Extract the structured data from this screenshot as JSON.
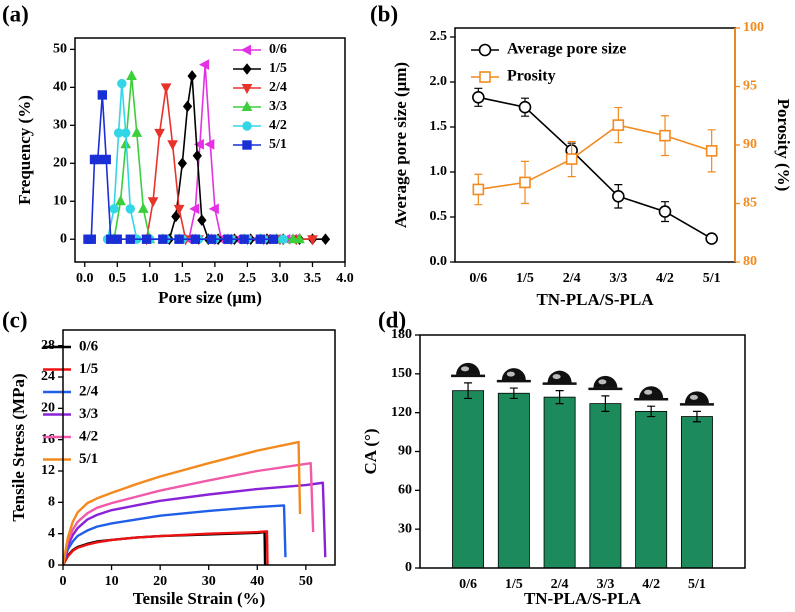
{
  "chart_data": [
    {
      "type": "line",
      "label": "(a)",
      "xlabel": "Pore size (μm)",
      "ylabel": "Frequency (%)",
      "xlim": [
        -0.15,
        4.0
      ],
      "xticks": [
        {
          "value": 0,
          "label": "0.0"
        },
        0.5,
        {
          "value": 1,
          "label": "1.0"
        },
        1.5,
        {
          "value": 2,
          "label": "2.0"
        },
        2.5,
        {
          "value": 3,
          "label": "3.0"
        },
        3.5,
        {
          "value": 4,
          "label": "4.0"
        }
      ],
      "ylim": [
        -6,
        53
      ],
      "yticks": [
        0,
        10,
        20,
        30,
        40,
        50
      ],
      "legend": "upper right",
      "series": [
        {
          "name": "0/6",
          "color": "#e331e3",
          "marker": "tri-left",
          "x": [
            1.5,
            1.6,
            1.7,
            1.77,
            1.85,
            1.93,
            2.0,
            2.1,
            2.2,
            2.35,
            2.5,
            2.65,
            2.8,
            2.95,
            3.1,
            3.2
          ],
          "values": [
            0,
            0,
            8,
            25,
            46,
            25,
            8,
            0,
            0,
            0,
            0,
            0,
            0,
            0,
            0,
            0
          ]
        },
        {
          "name": "1/5",
          "color": "#000000",
          "marker": "diamond",
          "x": [
            1.3,
            1.4,
            1.5,
            1.58,
            1.65,
            1.73,
            1.8,
            1.9,
            2.05,
            2.3,
            2.55,
            2.8,
            3.05,
            3.3,
            3.5,
            3.7
          ],
          "values": [
            0,
            6,
            20,
            35,
            43,
            22,
            5,
            0,
            0,
            0,
            0,
            0,
            0,
            0,
            0,
            0
          ]
        },
        {
          "name": "2/4",
          "color": "#e8332a",
          "marker": "tri-down",
          "x": [
            0.95,
            1.05,
            1.15,
            1.25,
            1.35,
            1.45,
            1.55,
            1.75,
            2.0,
            2.25,
            2.5,
            2.75,
            3.0,
            3.25,
            3.5
          ],
          "values": [
            0,
            10,
            28,
            40,
            25,
            8,
            0,
            0,
            0,
            0,
            0,
            0,
            0,
            0,
            0
          ]
        },
        {
          "name": "3/3",
          "color": "#3ccf3c",
          "marker": "tri-up",
          "x": [
            0.45,
            0.55,
            0.63,
            0.72,
            0.8,
            0.9,
            1.0,
            1.2,
            1.45,
            1.7,
            1.95,
            2.2,
            2.45,
            2.7,
            2.95,
            3.2,
            3.3
          ],
          "values": [
            0,
            10,
            25,
            43,
            28,
            8,
            0,
            0,
            0,
            0,
            0,
            0,
            0,
            0,
            0,
            0,
            0
          ]
        },
        {
          "name": "4/2",
          "color": "#33d6e6",
          "marker": "circle",
          "x": [
            0.35,
            0.45,
            0.52,
            0.57,
            0.63,
            0.7,
            0.8,
            1.0,
            1.25,
            1.5,
            1.75,
            2.0,
            2.25,
            2.5,
            2.75,
            3.05
          ],
          "values": [
            0,
            8,
            28,
            41,
            28,
            8,
            0,
            0,
            0,
            0,
            0,
            0,
            0,
            0,
            0,
            0
          ]
        },
        {
          "name": "5/1",
          "color": "#1a2fd6",
          "marker": "square",
          "x": [
            0.05,
            0.1,
            0.15,
            0.2,
            0.27,
            0.33,
            0.4,
            0.5,
            0.7,
            0.95,
            1.2,
            1.45,
            1.7,
            1.95,
            2.2,
            2.45,
            2.7,
            2.9
          ],
          "values": [
            0,
            0,
            21,
            21,
            38,
            21,
            0,
            0,
            0,
            0,
            0,
            0,
            0,
            0,
            0,
            0,
            0,
            0
          ]
        }
      ]
    },
    {
      "type": "line",
      "label": "(b)",
      "xlabel": "TN-PLA/S-PLA",
      "ylabel": "Average pore size (μm)",
      "y2label": "Porosity (%)",
      "categories": [
        "0/6",
        "1/5",
        "2/4",
        "3/3",
        "4/2",
        "5/1"
      ],
      "ylim": [
        0,
        2.6
      ],
      "yticks": [
        {
          "value": 0,
          "label": "0.0"
        },
        0.5,
        {
          "value": 1,
          "label": "1.0"
        },
        1.5,
        {
          "value": 2,
          "label": "2.0"
        },
        2.5
      ],
      "y2lim": [
        80,
        100
      ],
      "y2ticks": [
        80,
        85,
        90,
        95,
        100
      ],
      "y2color": "#f28a1e",
      "legend": "upper right",
      "series": [
        {
          "name": "Average pore size",
          "color": "#000000",
          "marker": "circle-open",
          "values": [
            1.83,
            1.72,
            1.24,
            0.73,
            0.56,
            0.26
          ],
          "errors": [
            0.1,
            0.1,
            0.08,
            0.13,
            0.11,
            0.04
          ]
        },
        {
          "name": "Prosity",
          "color": "#f28a1e",
          "marker": "square-open",
          "axis": "y2",
          "values": [
            86.2,
            86.8,
            88.8,
            91.7,
            90.8,
            89.5
          ],
          "errors": [
            1.3,
            1.8,
            1.5,
            1.5,
            1.7,
            1.8
          ]
        }
      ]
    },
    {
      "type": "line",
      "label": "(c)",
      "xlabel": "Tensile Strain (%)",
      "ylabel": "Tensile Stress (MPa)",
      "xlim": [
        0,
        56
      ],
      "xticks": [
        0,
        10,
        20,
        30,
        40,
        50
      ],
      "ylim": [
        0,
        30
      ],
      "yticks": [
        0,
        4,
        8,
        12,
        16,
        20,
        24,
        28
      ],
      "legend": "upper left",
      "series": [
        {
          "name": "0/6",
          "color": "#000000",
          "x": [
            0,
            1,
            2,
            3,
            5,
            7,
            10,
            15,
            20,
            30,
            40,
            41.5,
            41.6
          ],
          "values": [
            0,
            1.2,
            1.9,
            2.3,
            2.7,
            3.0,
            3.2,
            3.5,
            3.7,
            3.9,
            4.1,
            4.2,
            0
          ]
        },
        {
          "name": "1/5",
          "color": "#ee1111",
          "x": [
            0,
            1,
            2,
            3,
            5,
            7,
            10,
            15,
            20,
            30,
            40,
            42,
            42.1
          ],
          "values": [
            0,
            1.1,
            1.8,
            2.2,
            2.6,
            2.9,
            3.2,
            3.5,
            3.7,
            4.0,
            4.2,
            4.3,
            0
          ]
        },
        {
          "name": "2/4",
          "color": "#1f5fe8",
          "x": [
            0,
            1,
            2,
            3,
            5,
            7,
            10,
            15,
            20,
            30,
            40,
            45.5,
            45.8
          ],
          "values": [
            0,
            2.0,
            3.0,
            3.7,
            4.4,
            4.9,
            5.3,
            5.8,
            6.3,
            6.9,
            7.4,
            7.6,
            1.0
          ]
        },
        {
          "name": "3/3",
          "color": "#8a22d8",
          "x": [
            0,
            1,
            2,
            3,
            5,
            7,
            10,
            15,
            20,
            30,
            40,
            50,
            53.5,
            54
          ],
          "values": [
            0,
            2.5,
            3.8,
            4.7,
            5.8,
            6.4,
            7.0,
            7.6,
            8.2,
            9.0,
            9.7,
            10.2,
            10.5,
            1.0
          ]
        },
        {
          "name": "4/2",
          "color": "#f05aa8",
          "x": [
            0,
            1,
            2,
            3,
            5,
            7,
            10,
            15,
            20,
            30,
            40,
            51,
            51.5
          ],
          "values": [
            0,
            3.0,
            4.5,
            5.5,
            6.6,
            7.3,
            7.9,
            8.7,
            9.5,
            10.8,
            12.0,
            13.0,
            4.2
          ]
        },
        {
          "name": "5/1",
          "color": "#f28a1e",
          "x": [
            0,
            1,
            2,
            3,
            5,
            7,
            10,
            15,
            20,
            30,
            40,
            48.5,
            48.8
          ],
          "values": [
            0,
            3.5,
            5.5,
            6.7,
            7.9,
            8.5,
            9.2,
            10.3,
            11.3,
            13.0,
            14.6,
            15.7,
            6.5
          ]
        }
      ]
    },
    {
      "type": "bar",
      "label": "(d)",
      "xlabel": "TN-PLA/S-PLA",
      "ylabel": "CA (°)",
      "categories": [
        "0/6",
        "1/5",
        "2/4",
        "3/3",
        "4/2",
        "5/1"
      ],
      "ylim": [
        0,
        180
      ],
      "yticks": [
        0,
        30,
        60,
        90,
        120,
        150,
        180
      ],
      "color": "#1d8a5c",
      "droplet_icons": true,
      "values": [
        137,
        135,
        132,
        127,
        121,
        117
      ],
      "errors": [
        6,
        4,
        5,
        6,
        4,
        4
      ]
    }
  ]
}
